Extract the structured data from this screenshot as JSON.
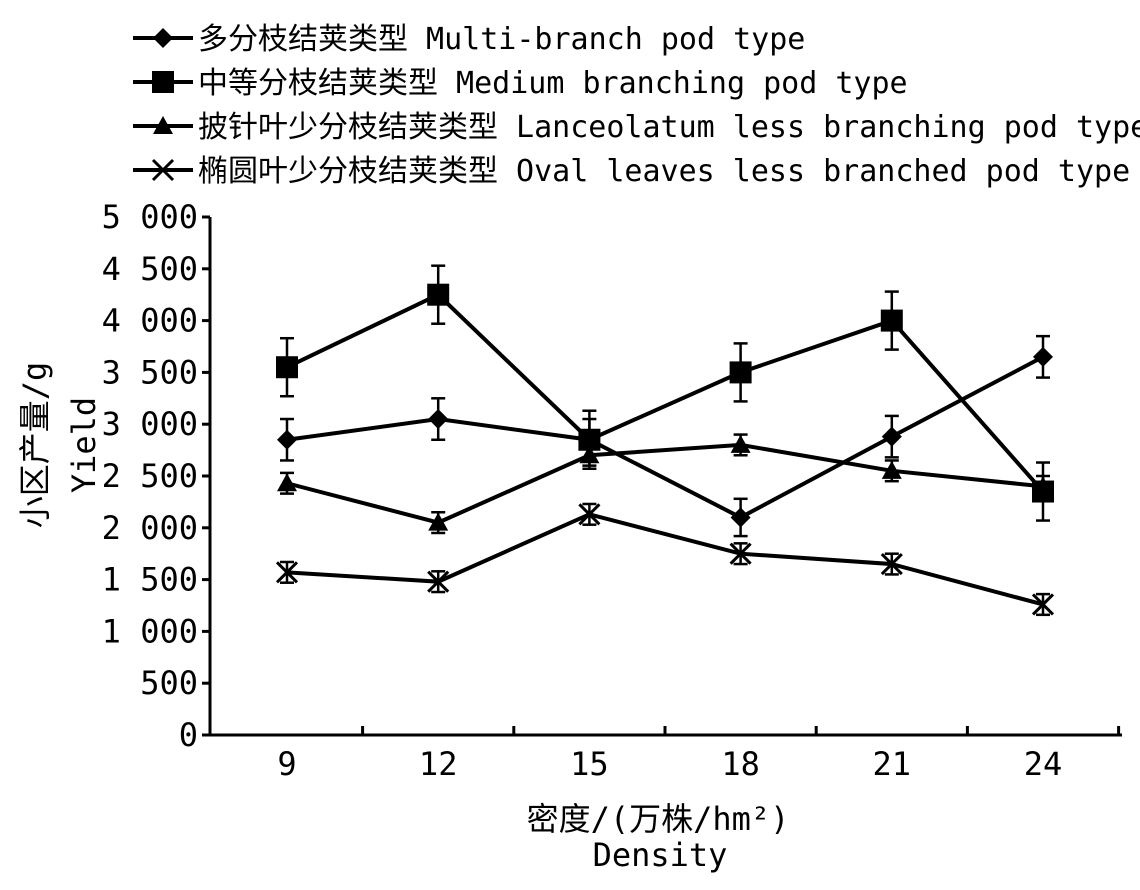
{
  "chart_data": {
    "type": "line",
    "x": [
      9,
      12,
      15,
      18,
      21,
      24
    ],
    "xticks": [
      "9",
      "12",
      "15",
      "18",
      "21",
      "24"
    ],
    "ylim": [
      0,
      5000
    ],
    "yticks": [
      "0",
      "500",
      "1 000",
      "1 500",
      "2 000",
      "2 500",
      "3 000",
      "3 500",
      "4 000",
      "4 500",
      "5 000"
    ],
    "ytick_values": [
      0,
      500,
      1000,
      1500,
      2000,
      2500,
      3000,
      3500,
      4000,
      4500,
      5000
    ],
    "xlabel_cn": "密度/(万株/hm²)",
    "xlabel_en": "Density",
    "ylabel_cn": "小区产量/g",
    "ylabel_en": "Yield",
    "legend_position": "top-left",
    "grid": false,
    "series": [
      {
        "name": "多分枝结荚类型 Multi-branch pod type",
        "marker": "diamond",
        "values": [
          2850,
          3050,
          2850,
          2100,
          2880,
          3650
        ],
        "errors": [
          200,
          200,
          200,
          180,
          200,
          200
        ]
      },
      {
        "name": "中等分枝结荚类型 Medium branching pod type",
        "marker": "square",
        "values": [
          3550,
          4250,
          2850,
          3500,
          4000,
          2350
        ],
        "errors": [
          280,
          280,
          280,
          280,
          280,
          280
        ]
      },
      {
        "name": "披针叶少分枝结荚类型 Lanceolatum less branching pod type",
        "marker": "triangle",
        "values": [
          2430,
          2050,
          2700,
          2800,
          2550,
          2400
        ],
        "errors": [
          100,
          100,
          100,
          100,
          100,
          100
        ]
      },
      {
        "name": "椭圆叶少分枝结荚类型 Oval leaves less branched pod type",
        "marker": "x",
        "values": [
          1570,
          1480,
          2130,
          1750,
          1650,
          1260
        ],
        "errors": [
          100,
          100,
          100,
          100,
          100,
          100
        ]
      }
    ]
  }
}
